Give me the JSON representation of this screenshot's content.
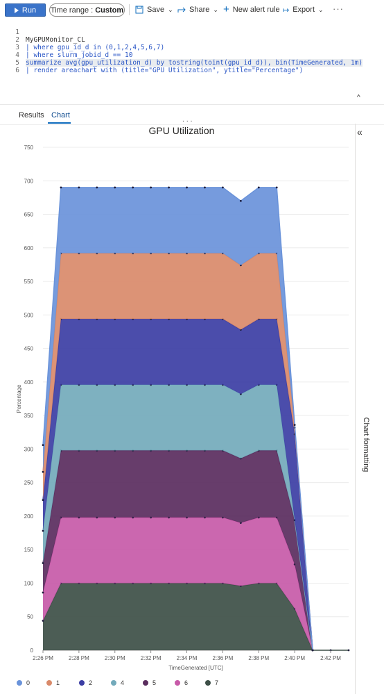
{
  "toolbar": {
    "run_label": "Run",
    "time_range_label": "Time range :",
    "time_range_value": "Custom",
    "save_label": "Save",
    "share_label": "Share",
    "new_alert_label": "New alert rule",
    "export_label": "Export",
    "more_label": "···"
  },
  "editor": {
    "lines": [
      {
        "num": "1",
        "text": "MyGPUMonitor_CL"
      },
      {
        "num": "2",
        "text": "| where gpu_id_d in (0,1,2,4,5,6,7)"
      },
      {
        "num": "3",
        "text": "| where slurm_jobid_d == 10"
      },
      {
        "num": "4",
        "text": "summarize avg(gpu_utilization_d) by tostring(toint(gpu_id_d)), bin(TimeGenerated, 1m)"
      },
      {
        "num": "5",
        "text": "| render areachart with (title=\"GPU Utilization\", ytitle=\"Percentage\")"
      },
      {
        "num": "6",
        "text": ""
      }
    ]
  },
  "tabs": [
    {
      "label": "Results",
      "active": false
    },
    {
      "label": "Chart",
      "active": true
    }
  ],
  "side_panel": {
    "collapse_label": "«",
    "title": "Chart formatting"
  },
  "chart_data": {
    "type": "area",
    "stacked": true,
    "title": "GPU Utilization",
    "xlabel": "TimeGenerated [UTC]",
    "ylabel": "Percentage",
    "ylim": [
      0,
      750
    ],
    "yticks": [
      0,
      50,
      100,
      150,
      200,
      250,
      300,
      350,
      400,
      450,
      500,
      550,
      600,
      650,
      700,
      750
    ],
    "xticks": [
      "2:26 PM",
      "2:28 PM",
      "2:30 PM",
      "2:32 PM",
      "2:34 PM",
      "2:36 PM",
      "2:38 PM",
      "2:40 PM",
      "2:42 PM"
    ],
    "x": [
      "2:26 PM",
      "2:27 PM",
      "2:28 PM",
      "2:29 PM",
      "2:30 PM",
      "2:31 PM",
      "2:32 PM",
      "2:33 PM",
      "2:34 PM",
      "2:35 PM",
      "2:36 PM",
      "2:37 PM",
      "2:38 PM",
      "2:39 PM",
      "2:40 PM",
      "2:41 PM",
      "2:42 PM",
      "2:43 PM"
    ],
    "grid": true,
    "legend_position": "bottom-left",
    "series": [
      {
        "name": "0",
        "color": "#6a93da",
        "values": [
          40,
          98,
          98,
          98,
          98,
          98,
          98,
          98,
          98,
          98,
          98,
          96,
          98,
          98,
          4,
          0,
          null,
          null
        ]
      },
      {
        "name": "1",
        "color": "#d98a6a",
        "values": [
          42,
          98,
          98,
          98,
          98,
          98,
          98,
          98,
          98,
          98,
          98,
          96,
          98,
          98,
          10,
          0,
          null,
          null
        ]
      },
      {
        "name": "2",
        "color": "#3c3ea4",
        "values": [
          46,
          98,
          98,
          98,
          98,
          98,
          98,
          98,
          98,
          98,
          98,
          96,
          98,
          98,
          128,
          0,
          null,
          null
        ]
      },
      {
        "name": "4",
        "color": "#73aabb",
        "values": [
          48,
          98,
          98,
          98,
          98,
          98,
          98,
          98,
          98,
          98,
          98,
          96,
          98,
          98,
          0,
          0,
          null,
          null
        ]
      },
      {
        "name": "5",
        "color": "#5a2d5e",
        "values": [
          44,
          100,
          100,
          100,
          100,
          100,
          100,
          100,
          100,
          100,
          100,
          96,
          100,
          100,
          66,
          0,
          null,
          null
        ]
      },
      {
        "name": "6",
        "color": "#c75aa8",
        "values": [
          42,
          98,
          98,
          98,
          98,
          98,
          98,
          98,
          98,
          98,
          98,
          94,
          98,
          98,
          66,
          0,
          null,
          null
        ]
      },
      {
        "name": "7",
        "color": "#3d4f47",
        "values": [
          44,
          100,
          100,
          100,
          100,
          100,
          100,
          100,
          100,
          100,
          100,
          96,
          100,
          100,
          62,
          0,
          0,
          0
        ]
      }
    ]
  }
}
